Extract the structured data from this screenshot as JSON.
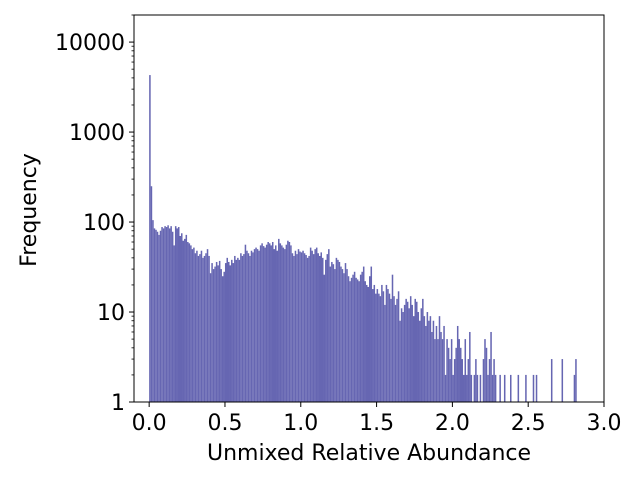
{
  "chart_data": {
    "type": "bar",
    "title": "",
    "xlabel": "Unmixed Relative Abundance",
    "ylabel": "Frequency",
    "xlim": [
      -0.1,
      3.0
    ],
    "ylim": [
      1,
      20000
    ],
    "yscale": "log",
    "grid": false,
    "legend": "none",
    "bar_color": "#6666b2",
    "bin_width": 0.01,
    "x_ticks": [
      {
        "value": 0.0,
        "label": "0.0"
      },
      {
        "value": 0.5,
        "label": "0.5"
      },
      {
        "value": 1.0,
        "label": "1.0"
      },
      {
        "value": 1.5,
        "label": "1.5"
      },
      {
        "value": 2.0,
        "label": "2.0"
      },
      {
        "value": 2.5,
        "label": "2.5"
      },
      {
        "value": 3.0,
        "label": "3.0"
      }
    ],
    "y_ticks": [
      {
        "value": 1,
        "label": "1"
      },
      {
        "value": 10,
        "label": "10"
      },
      {
        "value": 100,
        "label": "100"
      },
      {
        "value": 1000,
        "label": "1000"
      },
      {
        "value": 10000,
        "label": "10000"
      }
    ],
    "bins": [
      [
        0.0,
        4300
      ],
      [
        0.01,
        250
      ],
      [
        0.02,
        105
      ],
      [
        0.03,
        85
      ],
      [
        0.04,
        82
      ],
      [
        0.05,
        78
      ],
      [
        0.06,
        72
      ],
      [
        0.07,
        80
      ],
      [
        0.08,
        88
      ],
      [
        0.09,
        85
      ],
      [
        0.1,
        90
      ],
      [
        0.11,
        88
      ],
      [
        0.12,
        92
      ],
      [
        0.13,
        85
      ],
      [
        0.14,
        90
      ],
      [
        0.15,
        78
      ],
      [
        0.16,
        55
      ],
      [
        0.17,
        90
      ],
      [
        0.18,
        85
      ],
      [
        0.19,
        88
      ],
      [
        0.2,
        70
      ],
      [
        0.21,
        75
      ],
      [
        0.22,
        62
      ],
      [
        0.23,
        65
      ],
      [
        0.24,
        72
      ],
      [
        0.25,
        60
      ],
      [
        0.26,
        58
      ],
      [
        0.27,
        55
      ],
      [
        0.28,
        50
      ],
      [
        0.29,
        52
      ],
      [
        0.3,
        45
      ],
      [
        0.31,
        48
      ],
      [
        0.32,
        42
      ],
      [
        0.33,
        44
      ],
      [
        0.34,
        48
      ],
      [
        0.35,
        40
      ],
      [
        0.36,
        42
      ],
      [
        0.37,
        45
      ],
      [
        0.38,
        50
      ],
      [
        0.39,
        42
      ],
      [
        0.4,
        27
      ],
      [
        0.41,
        35
      ],
      [
        0.42,
        30
      ],
      [
        0.43,
        32
      ],
      [
        0.44,
        36
      ],
      [
        0.45,
        33
      ],
      [
        0.46,
        37
      ],
      [
        0.47,
        30
      ],
      [
        0.48,
        25
      ],
      [
        0.49,
        28
      ],
      [
        0.5,
        35
      ],
      [
        0.51,
        40
      ],
      [
        0.52,
        36
      ],
      [
        0.53,
        33
      ],
      [
        0.54,
        38
      ],
      [
        0.55,
        35
      ],
      [
        0.56,
        42
      ],
      [
        0.57,
        38
      ],
      [
        0.58,
        40
      ],
      [
        0.59,
        38
      ],
      [
        0.6,
        45
      ],
      [
        0.61,
        42
      ],
      [
        0.62,
        44
      ],
      [
        0.63,
        56
      ],
      [
        0.64,
        48
      ],
      [
        0.65,
        45
      ],
      [
        0.66,
        42
      ],
      [
        0.67,
        48
      ],
      [
        0.68,
        46
      ],
      [
        0.69,
        50
      ],
      [
        0.7,
        52
      ],
      [
        0.71,
        50
      ],
      [
        0.72,
        48
      ],
      [
        0.73,
        55
      ],
      [
        0.74,
        58
      ],
      [
        0.75,
        54
      ],
      [
        0.76,
        52
      ],
      [
        0.77,
        56
      ],
      [
        0.78,
        60
      ],
      [
        0.79,
        58
      ],
      [
        0.8,
        55
      ],
      [
        0.81,
        60
      ],
      [
        0.82,
        50
      ],
      [
        0.83,
        55
      ],
      [
        0.84,
        48
      ],
      [
        0.85,
        65
      ],
      [
        0.86,
        58
      ],
      [
        0.87,
        55
      ],
      [
        0.88,
        52
      ],
      [
        0.89,
        50
      ],
      [
        0.9,
        56
      ],
      [
        0.91,
        62
      ],
      [
        0.92,
        60
      ],
      [
        0.93,
        55
      ],
      [
        0.94,
        45
      ],
      [
        0.95,
        42
      ],
      [
        0.96,
        48
      ],
      [
        0.97,
        44
      ],
      [
        0.98,
        50
      ],
      [
        0.99,
        47
      ],
      [
        1.0,
        46
      ],
      [
        1.01,
        48
      ],
      [
        1.02,
        45
      ],
      [
        1.03,
        43
      ],
      [
        1.04,
        40
      ],
      [
        1.05,
        42
      ],
      [
        1.06,
        52
      ],
      [
        1.07,
        48
      ],
      [
        1.08,
        44
      ],
      [
        1.09,
        50
      ],
      [
        1.1,
        52
      ],
      [
        1.11,
        45
      ],
      [
        1.12,
        42
      ],
      [
        1.13,
        46
      ],
      [
        1.14,
        40
      ],
      [
        1.15,
        26
      ],
      [
        1.16,
        38
      ],
      [
        1.17,
        44
      ],
      [
        1.18,
        50
      ],
      [
        1.19,
        32
      ],
      [
        1.2,
        36
      ],
      [
        1.21,
        34
      ],
      [
        1.22,
        30
      ],
      [
        1.23,
        40
      ],
      [
        1.24,
        38
      ],
      [
        1.25,
        36
      ],
      [
        1.26,
        32
      ],
      [
        1.27,
        30
      ],
      [
        1.28,
        27
      ],
      [
        1.29,
        35
      ],
      [
        1.3,
        30
      ],
      [
        1.31,
        25
      ],
      [
        1.32,
        22
      ],
      [
        1.33,
        24
      ],
      [
        1.34,
        26
      ],
      [
        1.35,
        28
      ],
      [
        1.36,
        24
      ],
      [
        1.37,
        23
      ],
      [
        1.38,
        22
      ],
      [
        1.39,
        26
      ],
      [
        1.4,
        28
      ],
      [
        1.41,
        32
      ],
      [
        1.42,
        22
      ],
      [
        1.43,
        20
      ],
      [
        1.44,
        19
      ],
      [
        1.45,
        25
      ],
      [
        1.46,
        32
      ],
      [
        1.47,
        18
      ],
      [
        1.48,
        20
      ],
      [
        1.49,
        16
      ],
      [
        1.5,
        18
      ],
      [
        1.51,
        16
      ],
      [
        1.52,
        15
      ],
      [
        1.53,
        20
      ],
      [
        1.54,
        17
      ],
      [
        1.55,
        12
      ],
      [
        1.56,
        20
      ],
      [
        1.57,
        18
      ],
      [
        1.58,
        16
      ],
      [
        1.59,
        14
      ],
      [
        1.6,
        26
      ],
      [
        1.61,
        15
      ],
      [
        1.62,
        12
      ],
      [
        1.63,
        14
      ],
      [
        1.64,
        17
      ],
      [
        1.65,
        8
      ],
      [
        1.66,
        11
      ],
      [
        1.67,
        10
      ],
      [
        1.68,
        12
      ],
      [
        1.69,
        14
      ],
      [
        1.7,
        13
      ],
      [
        1.71,
        11
      ],
      [
        1.72,
        15
      ],
      [
        1.73,
        12
      ],
      [
        1.74,
        9
      ],
      [
        1.75,
        14
      ],
      [
        1.76,
        13
      ],
      [
        1.77,
        10
      ],
      [
        1.78,
        8
      ],
      [
        1.79,
        11
      ],
      [
        1.8,
        14
      ],
      [
        1.81,
        9
      ],
      [
        1.82,
        7
      ],
      [
        1.83,
        10
      ],
      [
        1.84,
        8
      ],
      [
        1.85,
        9
      ],
      [
        1.86,
        6
      ],
      [
        1.87,
        8
      ],
      [
        1.88,
        5
      ],
      [
        1.89,
        7
      ],
      [
        1.9,
        5
      ],
      [
        1.91,
        9
      ],
      [
        1.92,
        6
      ],
      [
        1.93,
        5
      ],
      [
        1.94,
        7
      ],
      [
        1.95,
        2
      ],
      [
        1.96,
        5
      ],
      [
        1.97,
        4
      ],
      [
        1.98,
        3
      ],
      [
        1.99,
        5
      ],
      [
        2.0,
        2
      ],
      [
        2.01,
        3
      ],
      [
        2.02,
        4
      ],
      [
        2.03,
        7
      ],
      [
        2.04,
        5
      ],
      [
        2.05,
        4
      ],
      [
        2.06,
        3
      ],
      [
        2.07,
        2
      ],
      [
        2.08,
        5
      ],
      [
        2.09,
        2
      ],
      [
        2.1,
        3
      ],
      [
        2.11,
        6
      ],
      [
        2.12,
        2
      ],
      [
        2.13,
        1
      ],
      [
        2.14,
        2
      ],
      [
        2.15,
        3
      ],
      [
        2.16,
        2
      ],
      [
        2.17,
        1
      ],
      [
        2.18,
        2
      ],
      [
        2.19,
        1
      ],
      [
        2.2,
        3
      ],
      [
        2.21,
        5
      ],
      [
        2.22,
        4
      ],
      [
        2.23,
        2
      ],
      [
        2.24,
        3
      ],
      [
        2.25,
        6
      ],
      [
        2.26,
        2
      ],
      [
        2.27,
        3
      ],
      [
        2.28,
        2
      ],
      [
        2.29,
        1
      ],
      [
        2.31,
        2
      ],
      [
        2.32,
        1
      ],
      [
        2.34,
        2
      ],
      [
        2.36,
        1
      ],
      [
        2.38,
        2
      ],
      [
        2.4,
        1
      ],
      [
        2.43,
        2
      ],
      [
        2.45,
        1
      ],
      [
        2.48,
        2
      ],
      [
        2.5,
        1
      ],
      [
        2.53,
        2
      ],
      [
        2.55,
        2
      ],
      [
        2.57,
        1
      ],
      [
        2.59,
        1
      ],
      [
        2.62,
        1
      ],
      [
        2.65,
        3
      ],
      [
        2.69,
        1
      ],
      [
        2.72,
        3
      ],
      [
        2.8,
        2
      ],
      [
        2.81,
        3
      ]
    ]
  }
}
